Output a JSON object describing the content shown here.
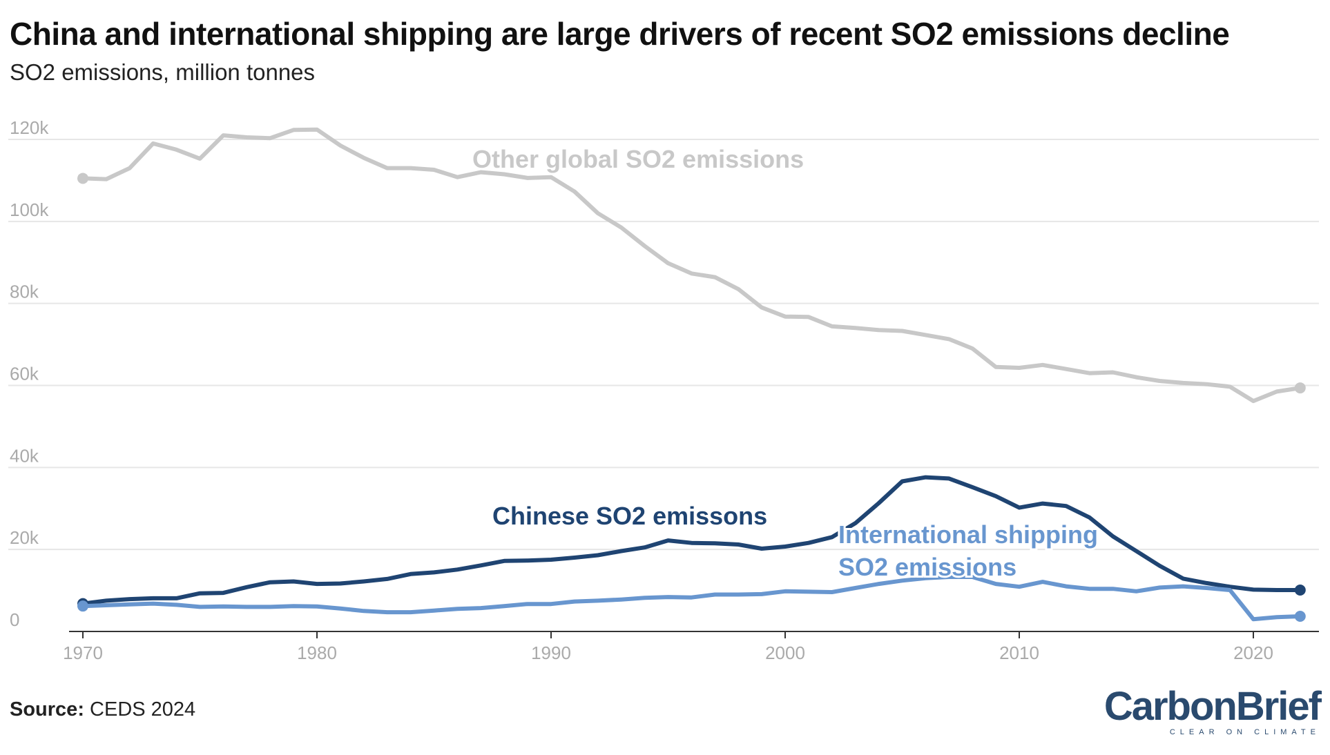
{
  "title": "China and international shipping are large drivers of recent SO2 emissions decline",
  "subtitle": "SO2 emissions, million tonnes",
  "source_label": "Source:",
  "source_text": "CEDS 2024",
  "logo": {
    "name": "CarbonBrief",
    "tagline": "CLEAR ON CLIMATE"
  },
  "chart_data": {
    "type": "line",
    "title": "China and international shipping are large drivers of recent SO2 emissions decline",
    "ylabel": "SO2 emissions, million tonnes",
    "xlim": [
      1970,
      2022
    ],
    "ylim": [
      0,
      125000
    ],
    "grid": true,
    "x_ticks": [
      1970,
      1980,
      1990,
      2000,
      2010,
      2020
    ],
    "x_tick_labels": [
      "1970",
      "1980",
      "1990",
      "2000",
      "2010",
      "2020"
    ],
    "y_ticks": [
      0,
      20000,
      40000,
      60000,
      80000,
      100000,
      120000
    ],
    "y_tick_labels": [
      "0",
      "20k",
      "40k",
      "60k",
      "80k",
      "100k",
      "120k"
    ],
    "x": [
      1970,
      1971,
      1972,
      1973,
      1974,
      1975,
      1976,
      1977,
      1978,
      1979,
      1980,
      1981,
      1982,
      1983,
      1984,
      1985,
      1986,
      1987,
      1988,
      1989,
      1990,
      1991,
      1992,
      1993,
      1994,
      1995,
      1996,
      1997,
      1998,
      1999,
      2000,
      2001,
      2002,
      2003,
      2004,
      2005,
      2006,
      2007,
      2008,
      2009,
      2010,
      2011,
      2012,
      2013,
      2014,
      2015,
      2016,
      2017,
      2018,
      2019,
      2020,
      2021,
      2022
    ],
    "series": [
      {
        "name": "Other global SO2 emissions",
        "color": "#c8c8c8",
        "values": [
          110500,
          110300,
          113000,
          119000,
          117500,
          115300,
          121000,
          120500,
          120300,
          122300,
          122400,
          118500,
          115500,
          113000,
          113000,
          112600,
          110800,
          112000,
          111500,
          110600,
          110800,
          107300,
          102000,
          98500,
          94000,
          89800,
          87300,
          86400,
          83500,
          79000,
          76800,
          76700,
          74400,
          74000,
          73500,
          73300,
          72300,
          71300,
          69000,
          64500,
          64300,
          65000,
          64000,
          63000,
          63200,
          62000,
          61100,
          60600,
          60300,
          59700,
          56200,
          58500,
          59400
        ]
      },
      {
        "name": "Chinese SO2 emissons",
        "color": "#1f4472",
        "values": [
          6800,
          7500,
          7900,
          8100,
          8100,
          9300,
          9400,
          10800,
          12000,
          12200,
          11600,
          11700,
          12200,
          12800,
          14000,
          14400,
          15100,
          16100,
          17200,
          17300,
          17500,
          18000,
          18600,
          19600,
          20500,
          22200,
          21600,
          21500,
          21200,
          20200,
          20700,
          21600,
          23000,
          26400,
          31300,
          36600,
          37600,
          37300,
          35200,
          33000,
          30200,
          31200,
          30600,
          27800,
          23200,
          19600,
          16000,
          12900,
          11800,
          10900,
          10200,
          10100,
          10100
        ]
      },
      {
        "name": "International shipping SO2 emissions",
        "color": "#6896cf",
        "values": [
          6200,
          6400,
          6600,
          6800,
          6500,
          6000,
          6100,
          6000,
          6000,
          6200,
          6100,
          5600,
          5000,
          4700,
          4700,
          5100,
          5500,
          5700,
          6200,
          6700,
          6700,
          7300,
          7500,
          7800,
          8200,
          8400,
          8300,
          9000,
          9000,
          9100,
          9800,
          9700,
          9600,
          10600,
          11600,
          12400,
          13000,
          13300,
          13300,
          11600,
          10900,
          12100,
          11000,
          10400,
          10400,
          9800,
          10700,
          11000,
          10600,
          10100,
          3000,
          3500,
          3700
        ]
      }
    ],
    "annotations": [
      "Other global SO2 emissions",
      "Chinese SO2 emissons",
      "International shipping",
      "SO2 emissions"
    ]
  }
}
